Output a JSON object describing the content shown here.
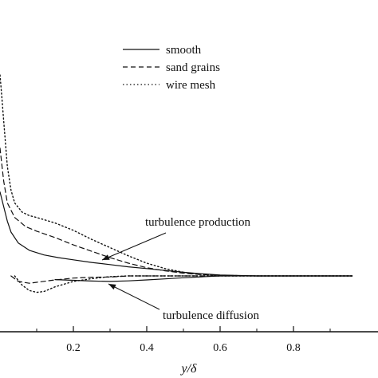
{
  "chart_data": {
    "type": "line",
    "title": "",
    "xlabel": "y/δ",
    "ylabel": "",
    "xlim": [
      0.0,
      0.96
    ],
    "ylim": [
      -0.3,
      1.15
    ],
    "x_ticks": [
      0.2,
      0.4,
      0.6,
      0.8
    ],
    "x_tick_labels": [
      "0.2",
      "0.4",
      "0.6",
      "0.8"
    ],
    "grid": false,
    "legend_position": "top-center",
    "series": [
      {
        "name": "smooth",
        "style": "solid",
        "groups": [
          {
            "label": "turbulence production",
            "x": [
              0.0,
              0.01,
              0.02,
              0.03,
              0.05,
              0.08,
              0.12,
              0.16,
              0.2,
              0.25,
              0.3,
              0.35,
              0.4,
              0.45,
              0.5,
              0.55,
              0.6,
              0.7,
              0.8,
              0.9,
              0.96
            ],
            "y": [
              0.46,
              0.38,
              0.3,
              0.24,
              0.18,
              0.14,
              0.115,
              0.1,
              0.088,
              0.074,
              0.062,
              0.05,
              0.04,
              0.03,
              0.02,
              0.012,
              0.005,
              0.0,
              0.0,
              0.0,
              0.0
            ]
          },
          {
            "label": "turbulence diffusion",
            "x": [
              0.15,
              0.2,
              0.25,
              0.3,
              0.35,
              0.4,
              0.45,
              0.5,
              0.55,
              0.6,
              0.7,
              0.8,
              0.9,
              0.96
            ],
            "y": [
              -0.02,
              -0.024,
              -0.028,
              -0.03,
              -0.027,
              -0.022,
              -0.016,
              -0.01,
              -0.005,
              0.0,
              0.0,
              0.0,
              0.0,
              0.0
            ]
          }
        ]
      },
      {
        "name": "sand grains",
        "style": "dashed",
        "groups": [
          {
            "label": "turbulence production",
            "x": [
              0.0,
              0.01,
              0.02,
              0.04,
              0.07,
              0.1,
              0.15,
              0.2,
              0.25,
              0.3,
              0.35,
              0.4,
              0.45,
              0.5,
              0.55,
              0.6,
              0.7,
              0.8,
              0.9,
              0.96
            ],
            "y": [
              0.7,
              0.52,
              0.4,
              0.32,
              0.27,
              0.245,
              0.21,
              0.17,
              0.135,
              0.1,
              0.07,
              0.045,
              0.028,
              0.015,
              0.007,
              0.003,
              0.0,
              0.0,
              0.0,
              0.0
            ]
          },
          {
            "label": "turbulence diffusion",
            "x": [
              0.03,
              0.05,
              0.08,
              0.1,
              0.15,
              0.2,
              0.25,
              0.3,
              0.35,
              0.4,
              0.5,
              0.6,
              0.7,
              0.8,
              0.9,
              0.96
            ],
            "y": [
              0.0,
              -0.03,
              -0.04,
              -0.035,
              -0.022,
              -0.012,
              -0.007,
              -0.006,
              0.0,
              0.0,
              0.0,
              0.0,
              0.0,
              0.0,
              0.0,
              0.0
            ]
          }
        ]
      },
      {
        "name": "wire mesh",
        "style": "dotted",
        "groups": [
          {
            "label": "turbulence production",
            "x": [
              0.0,
              0.005,
              0.01,
              0.02,
              0.03,
              0.04,
              0.06,
              0.08,
              0.1,
              0.15,
              0.2,
              0.25,
              0.3,
              0.35,
              0.4,
              0.45,
              0.5,
              0.55,
              0.6,
              0.7,
              0.8,
              0.9,
              0.96
            ],
            "y": [
              1.1,
              0.98,
              0.85,
              0.6,
              0.47,
              0.4,
              0.35,
              0.33,
              0.32,
              0.29,
              0.25,
              0.2,
              0.155,
              0.11,
              0.07,
              0.04,
              0.02,
              0.008,
              0.003,
              0.0,
              0.0,
              0.0,
              0.0
            ]
          },
          {
            "label": "turbulence diffusion",
            "x": [
              0.04,
              0.06,
              0.08,
              0.1,
              0.12,
              0.15,
              0.2,
              0.25,
              0.3,
              0.35,
              0.4,
              0.5,
              0.6,
              0.7,
              0.8,
              0.9,
              0.96
            ],
            "y": [
              0.0,
              -0.05,
              -0.08,
              -0.09,
              -0.085,
              -0.06,
              -0.03,
              -0.015,
              -0.004,
              0.0,
              0.0,
              0.0,
              0.0,
              0.0,
              0.0,
              0.0,
              0.0
            ]
          }
        ]
      }
    ],
    "annotations": [
      {
        "text": "turbulence production",
        "target_x": 0.3,
        "target_y": 0.065
      },
      {
        "text": "turbulence diffusion",
        "target_x": 0.3,
        "target_y": -0.03
      }
    ]
  }
}
